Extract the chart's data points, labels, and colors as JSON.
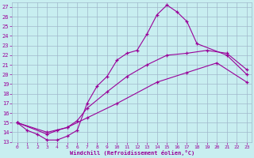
{
  "xlabel": "Windchill (Refroidissement éolien,°C)",
  "bg_color": "#c8eef0",
  "grid_color": "#a0b8cc",
  "line_color": "#990099",
  "xlim": [
    -0.5,
    23.5
  ],
  "ylim": [
    13,
    27.5
  ],
  "yticks": [
    13,
    14,
    15,
    16,
    17,
    18,
    19,
    20,
    21,
    22,
    23,
    24,
    25,
    26,
    27
  ],
  "xticks": [
    0,
    1,
    2,
    3,
    4,
    5,
    6,
    7,
    8,
    9,
    10,
    11,
    12,
    13,
    14,
    15,
    16,
    17,
    18,
    19,
    20,
    21,
    22,
    23
  ],
  "line1_x": [
    0,
    1,
    2,
    3,
    4,
    5,
    6,
    7,
    8,
    9,
    10,
    11,
    12,
    13,
    14,
    15,
    16,
    17,
    18,
    21,
    23
  ],
  "line1_y": [
    15.0,
    14.2,
    13.8,
    13.2,
    13.2,
    13.6,
    14.2,
    17.0,
    18.8,
    19.8,
    21.5,
    22.2,
    22.5,
    24.2,
    26.2,
    27.2,
    26.5,
    25.5,
    23.2,
    22.0,
    20.0
  ],
  "line2_x": [
    0,
    3,
    4,
    5,
    6,
    7,
    9,
    11,
    13,
    15,
    17,
    19,
    21,
    23
  ],
  "line2_y": [
    15.0,
    13.8,
    14.2,
    14.5,
    15.2,
    16.5,
    18.2,
    19.8,
    21.0,
    22.0,
    22.2,
    22.5,
    22.2,
    20.5
  ],
  "line3_x": [
    0,
    3,
    5,
    7,
    10,
    14,
    17,
    20,
    23
  ],
  "line3_y": [
    15.0,
    14.0,
    14.5,
    15.5,
    17.0,
    19.2,
    20.2,
    21.2,
    19.2
  ]
}
